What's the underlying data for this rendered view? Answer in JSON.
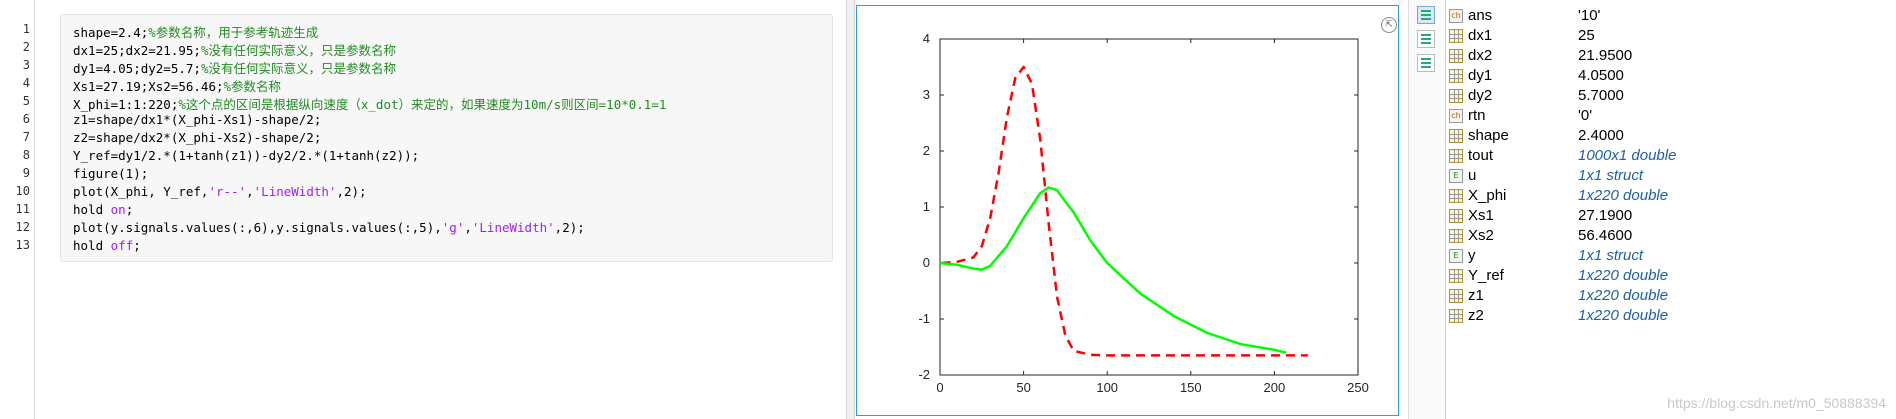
{
  "editor": {
    "line_numbers": [
      "1",
      "2",
      "3",
      "4",
      "5",
      "6",
      "7",
      "8",
      "9",
      "10",
      "11",
      "12",
      "13"
    ],
    "lines": [
      [
        {
          "t": "shape=2.4;",
          "c": ""
        },
        {
          "t": "%参数名称，用于参考轨迹生成",
          "c": "cm"
        }
      ],
      [
        {
          "t": "dx1=25;dx2=21.95;",
          "c": ""
        },
        {
          "t": "%没有任何实际意义，只是参数名称",
          "c": "cm"
        }
      ],
      [
        {
          "t": "dy1=4.05;dy2=5.7;",
          "c": ""
        },
        {
          "t": "%没有任何实际意义，只是参数名称",
          "c": "cm"
        }
      ],
      [
        {
          "t": "Xs1=27.19;Xs2=56.46;",
          "c": ""
        },
        {
          "t": "%参数名称",
          "c": "cm"
        }
      ],
      [
        {
          "t": "X_phi=1:1:220;",
          "c": ""
        },
        {
          "t": "%这个点的区间是根据纵向速度（x_dot）来定的，如果速度为10m/s则区间=10*0.1=1",
          "c": "cm"
        }
      ],
      [
        {
          "t": "z1=shape/dx1*(X_phi-Xs1)-shape/2;",
          "c": ""
        }
      ],
      [
        {
          "t": "z2=shape/dx2*(X_phi-Xs2)-shape/2;",
          "c": ""
        }
      ],
      [
        {
          "t": "Y_ref=dy1/2.*(1+tanh(z1))-dy2/2.*(1+tanh(z2));",
          "c": ""
        }
      ],
      [
        {
          "t": "figure(1);",
          "c": ""
        }
      ],
      [
        {
          "t": "plot(X_phi, Y_ref,",
          "c": ""
        },
        {
          "t": "'r--'",
          "c": "st"
        },
        {
          "t": ",",
          "c": ""
        },
        {
          "t": "'LineWidth'",
          "c": "st"
        },
        {
          "t": ",2);",
          "c": ""
        }
      ],
      [
        {
          "t": "hold ",
          "c": ""
        },
        {
          "t": "on",
          "c": "st"
        },
        {
          "t": ";",
          "c": ""
        }
      ],
      [
        {
          "t": "plot(y.signals.values(:,6),y.signals.values(:,5),",
          "c": ""
        },
        {
          "t": "'g'",
          "c": "st"
        },
        {
          "t": ",",
          "c": ""
        },
        {
          "t": "'LineWidth'",
          "c": "st"
        },
        {
          "t": ",2);",
          "c": ""
        }
      ],
      [
        {
          "t": "hold ",
          "c": ""
        },
        {
          "t": "off",
          "c": "st"
        },
        {
          "t": ";",
          "c": ""
        }
      ]
    ]
  },
  "figure": {
    "undock_icon": "undock-icon",
    "undock_glyph": "⇱"
  },
  "chart_data": {
    "type": "line",
    "title": "",
    "xlabel": "",
    "ylabel": "",
    "xlim": [
      0,
      250
    ],
    "ylim": [
      -2,
      4
    ],
    "xticks": [
      0,
      50,
      100,
      150,
      200,
      250
    ],
    "yticks": [
      -2,
      -1,
      0,
      1,
      2,
      3,
      4
    ],
    "grid": false,
    "series": [
      {
        "style": "dashed",
        "color": "#ff0000",
        "x": [
          1,
          10,
          20,
          25,
          30,
          35,
          40,
          45,
          50,
          55,
          60,
          65,
          70,
          75,
          80,
          90,
          100,
          120,
          150,
          180,
          220
        ],
        "y": [
          0.0,
          0.02,
          0.1,
          0.3,
          0.8,
          1.6,
          2.6,
          3.3,
          3.5,
          3.2,
          2.2,
          0.7,
          -0.6,
          -1.3,
          -1.57,
          -1.64,
          -1.65,
          -1.65,
          -1.65,
          -1.65,
          -1.65
        ]
      },
      {
        "style": "solid",
        "color": "#00ff00",
        "x": [
          0,
          10,
          20,
          25,
          30,
          40,
          50,
          60,
          65,
          70,
          80,
          90,
          100,
          120,
          140,
          160,
          180,
          200,
          207
        ],
        "y": [
          0.0,
          -0.03,
          -0.1,
          -0.12,
          -0.05,
          0.3,
          0.8,
          1.25,
          1.35,
          1.3,
          0.9,
          0.4,
          0.0,
          -0.55,
          -0.95,
          -1.25,
          -1.45,
          -1.55,
          -1.6
        ]
      }
    ]
  },
  "toolbar": {
    "buttons": [
      "workspace-view-icon",
      "workspace-sort-icon",
      "workspace-filter-icon"
    ]
  },
  "workspace": {
    "rows": [
      {
        "icon": "char",
        "glyph": "ch",
        "name": "ans",
        "value": "'10'",
        "link": false
      },
      {
        "icon": "numeric",
        "glyph": "",
        "name": "dx1",
        "value": "25",
        "link": false
      },
      {
        "icon": "numeric",
        "glyph": "",
        "name": "dx2",
        "value": "21.9500",
        "link": false
      },
      {
        "icon": "numeric",
        "glyph": "",
        "name": "dy1",
        "value": "4.0500",
        "link": false
      },
      {
        "icon": "numeric",
        "glyph": "",
        "name": "dy2",
        "value": "5.7000",
        "link": false
      },
      {
        "icon": "char",
        "glyph": "ch",
        "name": "rtn",
        "value": "'0'",
        "link": false
      },
      {
        "icon": "numeric",
        "glyph": "",
        "name": "shape",
        "value": "2.4000",
        "link": false
      },
      {
        "icon": "numeric",
        "glyph": "",
        "name": "tout",
        "value": "1000x1 double",
        "link": true
      },
      {
        "icon": "struct",
        "glyph": "E",
        "name": "u",
        "value": "1x1 struct",
        "link": true
      },
      {
        "icon": "numeric",
        "glyph": "",
        "name": "X_phi",
        "value": "1x220 double",
        "link": true
      },
      {
        "icon": "numeric",
        "glyph": "",
        "name": "Xs1",
        "value": "27.1900",
        "link": false
      },
      {
        "icon": "numeric",
        "glyph": "",
        "name": "Xs2",
        "value": "56.4600",
        "link": false
      },
      {
        "icon": "struct",
        "glyph": "E",
        "name": "y",
        "value": "1x1 struct",
        "link": true
      },
      {
        "icon": "numeric",
        "glyph": "",
        "name": "Y_ref",
        "value": "1x220 double",
        "link": true
      },
      {
        "icon": "numeric",
        "glyph": "",
        "name": "z1",
        "value": "1x220 double",
        "link": true
      },
      {
        "icon": "numeric",
        "glyph": "",
        "name": "z2",
        "value": "1x220 double",
        "link": true
      }
    ]
  },
  "watermark": "https://blog.csdn.net/m0_50888394"
}
